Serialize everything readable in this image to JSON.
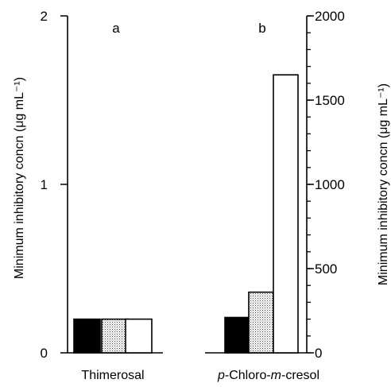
{
  "chart_data": [
    {
      "type": "bar",
      "panel": "a",
      "compound": "Thimerosal",
      "ylabel": "Minimum inhibitory concn (μg mL⁻¹)",
      "ylim": [
        0,
        2
      ],
      "yticks": [
        0,
        1,
        2
      ],
      "axis_side": "left",
      "values": [
        0.2,
        0.2,
        0.2
      ],
      "fills": [
        "solid-black",
        "dotted-grey",
        "white"
      ]
    },
    {
      "type": "bar",
      "panel": "b",
      "compound": "p-Chloro-m-cresol",
      "ylabel": "Minimum inhibitory concn (μg mL⁻¹)",
      "ylim": [
        0,
        2000
      ],
      "yticks": [
        0,
        500,
        1000,
        1500,
        2000
      ],
      "axis_side": "right",
      "values": [
        210,
        360,
        1650
      ],
      "fills": [
        "solid-black",
        "dotted-grey",
        "white"
      ]
    }
  ],
  "colors": {
    "black_bar": "#000000",
    "dotted_bar_dot": "#4a4a4a",
    "white_bar": "#ffffff",
    "axis": "#000000"
  }
}
